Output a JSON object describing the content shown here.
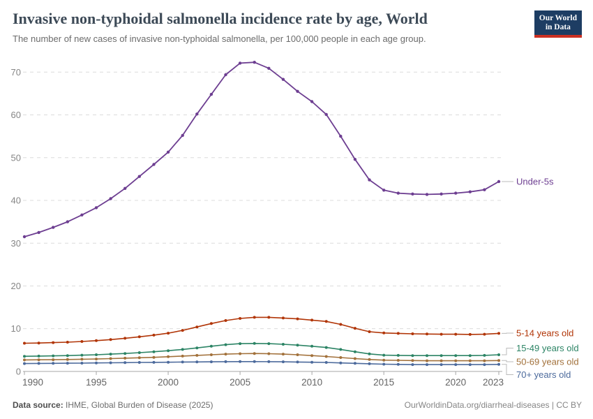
{
  "header": {
    "title": "Invasive non-typhoidal salmonella incidence rate by age, World",
    "subtitle": "The number of new cases of invasive non-typhoidal salmonella, per 100,000 people in each age group.",
    "logo": {
      "line1": "Our World",
      "line2": "in Data"
    }
  },
  "footer": {
    "source_label": "Data source:",
    "source_text": " IHME, Global Burden of Disease (2025)",
    "attribution": "OurWorldinData.org/diarrheal-diseases | CC BY"
  },
  "colors": {
    "under_5s": "#6D3E91",
    "age_5_14": "#B13507",
    "age_15_49": "#2C8465",
    "age_50_69": "#A2713B",
    "age_70_plus": "#4C6A9C",
    "logo_navy": "#1d3d63",
    "logo_red": "#cb3022",
    "gridline": "#dcdcdc",
    "axis": "#a6a6a6",
    "tick_label": "#686868",
    "connector": "#bbbbbb"
  },
  "chart_data": {
    "type": "line",
    "title": "Invasive non-typhoidal salmonella incidence rate by age, World",
    "xlabel": "",
    "ylabel": "",
    "ylim": [
      0,
      72.5
    ],
    "yticks": [
      0,
      10,
      20,
      30,
      40,
      50,
      60,
      70
    ],
    "xticks": [
      1990,
      1995,
      2000,
      2005,
      2010,
      2015,
      2020,
      2023
    ],
    "grid": "horizontal-dashed",
    "legend_position": "labels-at-line-ends-right",
    "x": [
      1990,
      1991,
      1992,
      1993,
      1994,
      1995,
      1996,
      1997,
      1998,
      1999,
      2000,
      2001,
      2002,
      2003,
      2004,
      2005,
      2006,
      2007,
      2008,
      2009,
      2010,
      2011,
      2012,
      2013,
      2014,
      2015,
      2016,
      2017,
      2018,
      2019,
      2020,
      2021,
      2022,
      2023
    ],
    "series": [
      {
        "name": "Under-5s",
        "color": "#6D3E91",
        "values": [
          31.5,
          32.5,
          33.7,
          35.0,
          36.6,
          38.3,
          40.4,
          42.8,
          45.6,
          48.4,
          51.3,
          55.2,
          60.2,
          64.8,
          69.4,
          72.1,
          72.3,
          70.9,
          68.3,
          65.5,
          63.1,
          60.1,
          55.0,
          49.6,
          44.8,
          42.4,
          41.7,
          41.5,
          41.4,
          41.5,
          41.7,
          42.0,
          42.5,
          44.4
        ]
      },
      {
        "name": "5-14 years old",
        "color": "#B13507",
        "values": [
          6.6,
          6.65,
          6.75,
          6.85,
          7.0,
          7.2,
          7.45,
          7.75,
          8.1,
          8.5,
          8.95,
          9.6,
          10.4,
          11.2,
          11.9,
          12.4,
          12.65,
          12.65,
          12.5,
          12.3,
          12.0,
          11.7,
          11.0,
          10.1,
          9.3,
          9.0,
          8.9,
          8.8,
          8.75,
          8.7,
          8.7,
          8.65,
          8.7,
          8.9
        ]
      },
      {
        "name": "15-49 years old",
        "color": "#2C8465",
        "values": [
          3.55,
          3.6,
          3.65,
          3.7,
          3.8,
          3.9,
          4.05,
          4.2,
          4.4,
          4.6,
          4.85,
          5.15,
          5.5,
          5.9,
          6.25,
          6.5,
          6.55,
          6.5,
          6.35,
          6.15,
          5.9,
          5.6,
          5.15,
          4.6,
          4.1,
          3.8,
          3.75,
          3.7,
          3.7,
          3.7,
          3.7,
          3.7,
          3.75,
          3.9
        ]
      },
      {
        "name": "50-69 years old",
        "color": "#A2713B",
        "values": [
          2.7,
          2.72,
          2.75,
          2.8,
          2.85,
          2.9,
          3.0,
          3.1,
          3.2,
          3.3,
          3.45,
          3.6,
          3.75,
          3.9,
          4.05,
          4.15,
          4.2,
          4.15,
          4.05,
          3.9,
          3.7,
          3.5,
          3.25,
          3.0,
          2.8,
          2.65,
          2.6,
          2.55,
          2.5,
          2.5,
          2.5,
          2.5,
          2.5,
          2.55
        ]
      },
      {
        "name": "70+ years old",
        "color": "#4C6A9C",
        "values": [
          1.85,
          1.87,
          1.9,
          1.92,
          1.95,
          2.0,
          2.02,
          2.05,
          2.1,
          2.12,
          2.15,
          2.2,
          2.22,
          2.25,
          2.28,
          2.3,
          2.3,
          2.28,
          2.25,
          2.2,
          2.15,
          2.1,
          2.0,
          1.9,
          1.8,
          1.7,
          1.65,
          1.6,
          1.6,
          1.6,
          1.6,
          1.6,
          1.6,
          1.65
        ]
      }
    ],
    "legend_label_y_svg": [
      180,
      397,
      418.5,
      438,
      456.5
    ]
  }
}
